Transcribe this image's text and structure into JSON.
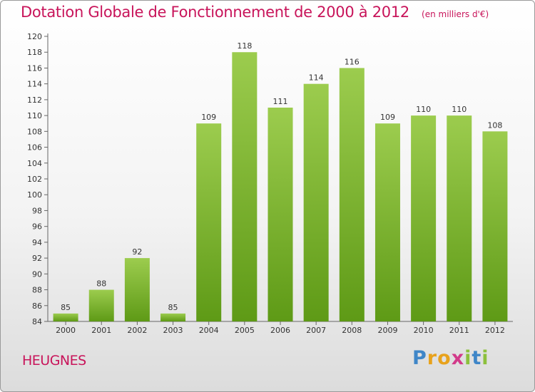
{
  "header": {
    "title": "Dotation Globale de Fonctionnement de 2000 à 2012",
    "unit": "(en milliers d'€)"
  },
  "footer": {
    "commune": "HEUGNES",
    "brand": "Proxiti"
  },
  "colors": {
    "accent": "#c8145a",
    "bar_light": "#9ccc4e",
    "bar_dark": "#5e9a16"
  },
  "chart_data": {
    "type": "bar",
    "title": "Dotation Globale de Fonctionnement de 2000 à 2012",
    "xlabel": "",
    "ylabel": "",
    "categories": [
      "2000",
      "2001",
      "2002",
      "2003",
      "2004",
      "2005",
      "2006",
      "2007",
      "2008",
      "2009",
      "2010",
      "2011",
      "2012"
    ],
    "values": [
      85,
      88,
      92,
      85,
      109,
      118,
      111,
      114,
      116,
      109,
      110,
      110,
      108
    ],
    "ylim": [
      84,
      120
    ],
    "yticks": [
      84,
      86,
      88,
      90,
      92,
      94,
      96,
      98,
      100,
      102,
      104,
      106,
      108,
      110,
      112,
      114,
      116,
      118,
      120
    ],
    "grid": false,
    "data_labels": true
  }
}
